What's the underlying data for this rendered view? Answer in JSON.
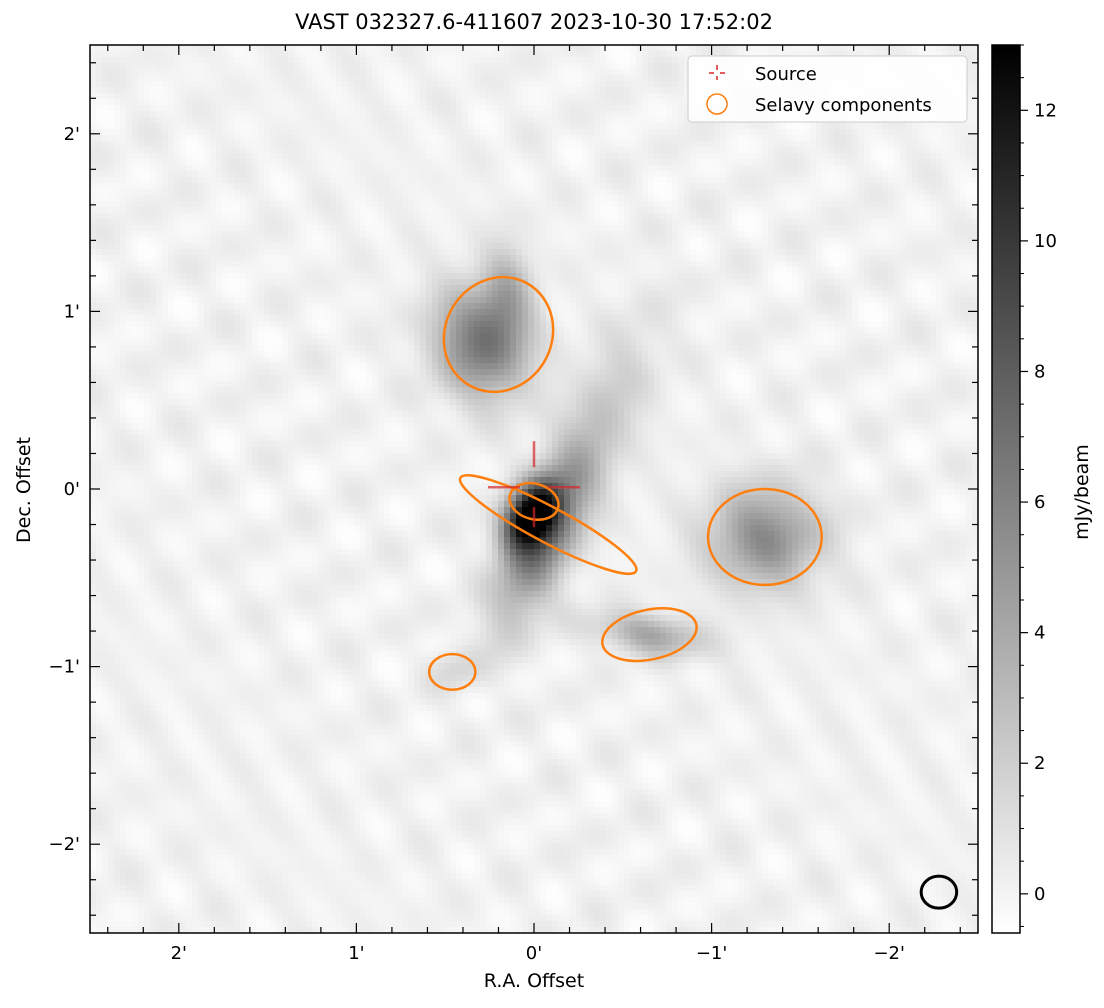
{
  "chart_data": {
    "type": "heatmap",
    "title": "VAST 032327.6-411607 2023-10-30 17:52:02",
    "xlabel": "R.A. Offset",
    "ylabel": "Dec. Offset",
    "xlim": [
      2.5,
      -2.5
    ],
    "ylim": [
      -2.5,
      2.5
    ],
    "x_ticks": [
      2,
      1,
      0,
      -1,
      -2
    ],
    "x_tick_labels": [
      "2'",
      "1'",
      "0'",
      "−1'",
      "−2'"
    ],
    "y_ticks": [
      2,
      1,
      0,
      -1,
      -2
    ],
    "y_tick_labels": [
      "2'",
      "1'",
      "0'",
      "−1'",
      "−2'"
    ],
    "colormap": "greys",
    "colorbar": {
      "label": "mJy/beam",
      "range": [
        -0.6,
        13
      ],
      "ticks": [
        0,
        2,
        4,
        6,
        8,
        10,
        12
      ],
      "tick_labels": [
        "0",
        "2",
        "4",
        "6",
        "8",
        "10",
        "12"
      ]
    },
    "emission_blobs": [
      {
        "x": 0.02,
        "y": -0.15,
        "peak": 13.0,
        "sx": 0.09,
        "sy": 0.14,
        "angle": 30
      },
      {
        "x": -0.05,
        "y": -0.3,
        "peak": 6.0,
        "sx": 0.12,
        "sy": 0.35,
        "angle": 25
      },
      {
        "x": 0.3,
        "y": 0.82,
        "peak": 6.5,
        "sx": 0.18,
        "sy": 0.22,
        "angle": -20
      },
      {
        "x": 0.15,
        "y": 1.1,
        "peak": 3.0,
        "sx": 0.1,
        "sy": 0.2,
        "angle": 0
      },
      {
        "x": -0.35,
        "y": 0.35,
        "peak": 2.2,
        "sx": 0.15,
        "sy": 0.45,
        "angle": 25
      },
      {
        "x": -1.3,
        "y": -0.27,
        "peak": 5.5,
        "sx": 0.22,
        "sy": 0.2,
        "angle": 0
      },
      {
        "x": -0.65,
        "y": -0.82,
        "peak": 4.0,
        "sx": 0.22,
        "sy": 0.08,
        "angle": 10
      },
      {
        "x": 0.45,
        "y": -1.02,
        "peak": 1.2,
        "sx": 0.1,
        "sy": 0.08,
        "angle": 0
      }
    ],
    "source": {
      "x": 0.0,
      "y": 0.01,
      "color": "#d62728"
    },
    "selavy_components": [
      {
        "x": 0.2,
        "y": 0.87,
        "major": 0.33,
        "minor": 0.3,
        "angle": 60
      },
      {
        "x": -0.08,
        "y": -0.2,
        "major": 0.56,
        "minor": 0.1,
        "angle": -28
      },
      {
        "x": 0.0,
        "y": -0.07,
        "major": 0.14,
        "minor": 0.1,
        "angle": -15
      },
      {
        "x": -1.3,
        "y": -0.27,
        "major": 0.32,
        "minor": 0.27,
        "angle": 0
      },
      {
        "x": -0.65,
        "y": -0.82,
        "major": 0.27,
        "minor": 0.14,
        "angle": 12
      },
      {
        "x": 0.46,
        "y": -1.03,
        "major": 0.13,
        "minor": 0.1,
        "angle": 0
      }
    ],
    "selavy_color": "#ff7f0e",
    "beam": {
      "x": -2.28,
      "y": -2.27,
      "major": 0.1,
      "minor": 0.09,
      "color": "#000000"
    },
    "legend": {
      "placement": "top-right",
      "entries": [
        {
          "label": "Source",
          "marker": "cross",
          "color": "#d62728"
        },
        {
          "label": "Selavy components",
          "marker": "circle",
          "color": "#ff7f0e"
        }
      ]
    }
  }
}
